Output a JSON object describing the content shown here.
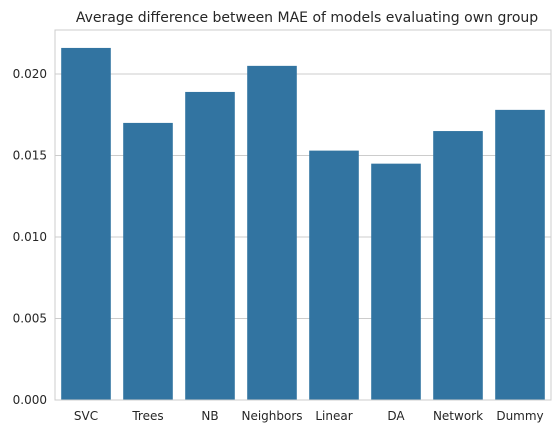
{
  "chart_data": {
    "type": "bar",
    "title": "Average difference between MAE of models evaluating own group",
    "xlabel": "",
    "ylabel": "",
    "categories": [
      "SVC",
      "Trees",
      "NB",
      "Neighbors",
      "Linear",
      "DA",
      "Network",
      "Dummy"
    ],
    "values": [
      0.0216,
      0.017,
      0.0189,
      0.0205,
      0.0153,
      0.0145,
      0.0165,
      0.0178
    ],
    "ylim": [
      0,
      0.0227
    ],
    "yticks": [
      0.0,
      0.005,
      0.01,
      0.015,
      0.02
    ],
    "ytick_labels": [
      "0.000",
      "0.005",
      "0.010",
      "0.015",
      "0.020"
    ],
    "grid": "horizontal",
    "legend": "none",
    "bar_color": "#3274a1",
    "grid_color": "#cccccc",
    "axes_edge_color": "#cccccc"
  }
}
